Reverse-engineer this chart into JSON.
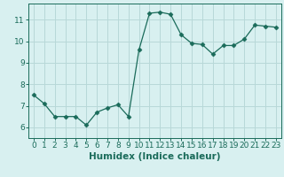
{
  "x": [
    0,
    1,
    2,
    3,
    4,
    5,
    6,
    7,
    8,
    9,
    10,
    11,
    12,
    13,
    14,
    15,
    16,
    17,
    18,
    19,
    20,
    21,
    22,
    23
  ],
  "y": [
    7.5,
    7.1,
    6.5,
    6.5,
    6.5,
    6.1,
    6.7,
    6.9,
    7.05,
    6.5,
    9.6,
    11.3,
    11.35,
    11.25,
    10.3,
    9.9,
    9.85,
    9.4,
    9.8,
    9.8,
    10.1,
    10.75,
    10.7,
    10.65
  ],
  "line_color": "#1a6b5a",
  "marker": "D",
  "marker_size": 2.5,
  "bg_color": "#d8f0f0",
  "grid_color": "#b8d8d8",
  "xlabel": "Humidex (Indice chaleur)",
  "xlim": [
    -0.5,
    23.5
  ],
  "ylim": [
    5.5,
    11.75
  ],
  "yticks": [
    6,
    7,
    8,
    9,
    10,
    11
  ],
  "xticks": [
    0,
    1,
    2,
    3,
    4,
    5,
    6,
    7,
    8,
    9,
    10,
    11,
    12,
    13,
    14,
    15,
    16,
    17,
    18,
    19,
    20,
    21,
    22,
    23
  ],
  "font_size": 6.5,
  "label_font_size": 7.5
}
